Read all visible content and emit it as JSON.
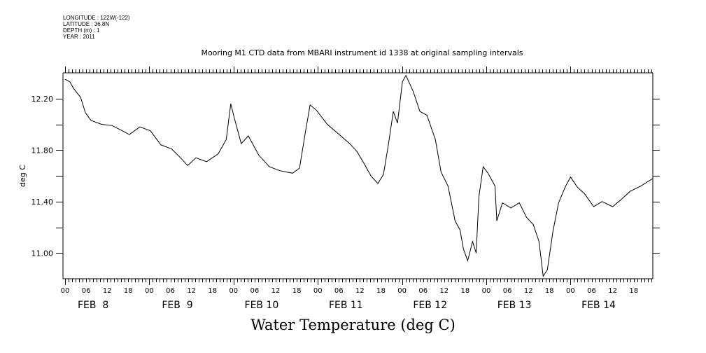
{
  "header": {
    "metadata_lines": [
      "LONGITUDE : 122W(-122)",
      "LATITUDE : 36.8N",
      "DEPTH (m) : 1",
      "YEAR : 2011"
    ],
    "subtitle": "Mooring M1 CTD data from MBARI instrument id 1338 at original sampling intervals"
  },
  "chart_data": {
    "type": "line",
    "title": "Water Temperature (deg C)",
    "subtitle": "Mooring M1 CTD data from MBARI instrument id 1338 at original sampling intervals",
    "xlabel": "",
    "ylabel": "deg C",
    "x_units": "hours since FEB 8 2011 00:00",
    "xlim": [
      0,
      168
    ],
    "ylim": [
      10.8,
      12.4
    ],
    "y_ticks": [
      11.0,
      11.2,
      11.4,
      11.6,
      11.8,
      12.0,
      12.2
    ],
    "y_tick_labels": [
      {
        "value": 11.0,
        "label": "11.00"
      },
      {
        "value": 11.4,
        "label": "11.40"
      },
      {
        "value": 11.8,
        "label": "11.80"
      },
      {
        "value": 12.2,
        "label": "12.20"
      }
    ],
    "x_hour_tick_labels": [
      "00",
      "06",
      "12",
      "18",
      "00",
      "06",
      "12",
      "18",
      "00",
      "06",
      "12",
      "18",
      "00",
      "06",
      "12",
      "18",
      "00",
      "06",
      "12",
      "18",
      "00",
      "06",
      "12",
      "18",
      "00",
      "06",
      "12",
      "18"
    ],
    "x_day_labels": [
      "FEB  8",
      "FEB  9",
      "FEB 10",
      "FEB 11",
      "FEB 12",
      "FEB 13",
      "FEB 14"
    ],
    "grid": false,
    "legend": "none",
    "series": [
      {
        "name": "Water Temperature",
        "color": "#000000",
        "x": [
          0,
          1.4,
          2.4,
          4.4,
          5.8,
          7.4,
          10.4,
          13.4,
          16.3,
          18.3,
          21.3,
          24.3,
          27.3,
          30.3,
          32.9,
          34.9,
          37.3,
          40.3,
          43.6,
          45.9,
          47.2,
          48.2,
          50.2,
          52.2,
          55.2,
          58.2,
          61.2,
          64.8,
          66.8,
          68.6,
          69.8,
          71.6,
          74.7,
          77.7,
          81.1,
          83.1,
          85.1,
          87.1,
          89.1,
          90.7,
          92.1,
          93.5,
          94.7,
          96.1,
          97.1,
          99.1,
          101.1,
          103.1,
          105.5,
          107.1,
          109.1,
          111.1,
          112.5,
          113.5,
          114.7,
          116.1,
          117.1,
          117.9,
          119.1,
          120.5,
          122.5,
          123.0,
          124.6,
          127.0,
          129.4,
          131.4,
          133.4,
          135.0,
          136.2,
          137.4,
          139.0,
          140.6,
          142.6,
          144.0,
          146.0,
          148.0,
          150.6,
          153.0,
          156.0,
          158.6,
          161.0,
          164.0,
          167.5
        ],
        "y": [
          12.35,
          12.33,
          12.28,
          12.21,
          12.09,
          12.03,
          12.0,
          11.99,
          11.95,
          11.92,
          11.98,
          11.95,
          11.84,
          11.81,
          11.74,
          11.68,
          11.74,
          11.71,
          11.77,
          11.88,
          12.16,
          12.05,
          11.85,
          11.91,
          11.76,
          11.67,
          11.64,
          11.62,
          11.66,
          11.96,
          12.15,
          12.11,
          12.0,
          11.93,
          11.85,
          11.79,
          11.7,
          11.6,
          11.54,
          11.61,
          11.84,
          12.1,
          12.01,
          12.33,
          12.38,
          12.26,
          12.1,
          12.07,
          11.88,
          11.63,
          11.52,
          11.25,
          11.18,
          11.03,
          10.94,
          11.09,
          11.0,
          11.44,
          11.67,
          11.62,
          11.52,
          11.25,
          11.39,
          11.35,
          11.39,
          11.28,
          11.22,
          11.09,
          10.82,
          10.87,
          11.17,
          11.39,
          11.52,
          11.59,
          11.51,
          11.46,
          11.36,
          11.4,
          11.36,
          11.42,
          11.48,
          11.52,
          11.58
        ]
      }
    ]
  }
}
